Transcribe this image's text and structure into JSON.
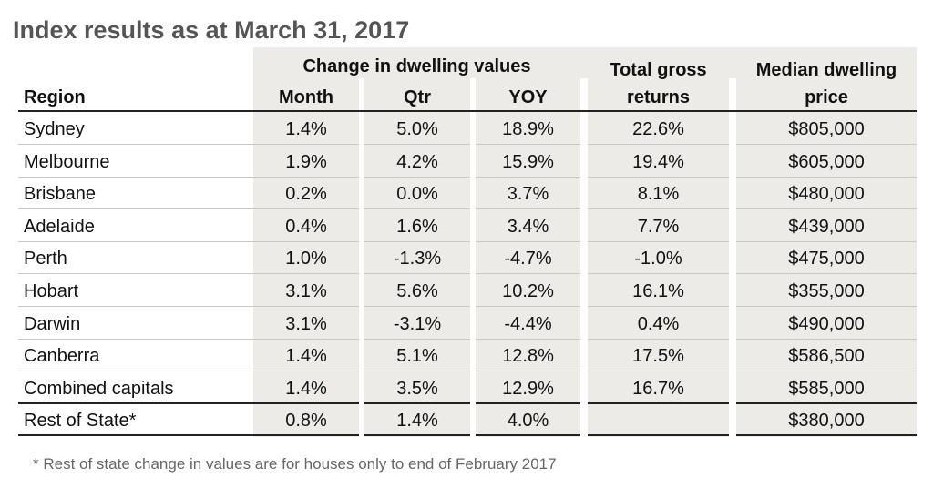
{
  "title": "Index results as at March 31, 2017",
  "group_header": "Change in dwelling values",
  "headers": {
    "region": "Region",
    "month": "Month",
    "qtr": "Qtr",
    "yoy": "YOY",
    "total_line1": "Total gross",
    "total_line2": "returns",
    "median_line1": "Median dwelling",
    "median_line2": "price"
  },
  "rows": [
    {
      "region": "Sydney",
      "month": "1.4%",
      "qtr": "5.0%",
      "yoy": "18.9%",
      "total": "22.6%",
      "median": "$805,000"
    },
    {
      "region": "Melbourne",
      "month": "1.9%",
      "qtr": "4.2%",
      "yoy": "15.9%",
      "total": "19.4%",
      "median": "$605,000"
    },
    {
      "region": "Brisbane",
      "month": "0.2%",
      "qtr": "0.0%",
      "yoy": "3.7%",
      "total": "8.1%",
      "median": "$480,000"
    },
    {
      "region": "Adelaide",
      "month": "0.4%",
      "qtr": "1.6%",
      "yoy": "3.4%",
      "total": "7.7%",
      "median": "$439,000"
    },
    {
      "region": "Perth",
      "month": "1.0%",
      "qtr": "-1.3%",
      "yoy": "-4.7%",
      "total": "-1.0%",
      "median": "$475,000"
    },
    {
      "region": "Hobart",
      "month": "3.1%",
      "qtr": "5.6%",
      "yoy": "10.2%",
      "total": "16.1%",
      "median": "$355,000"
    },
    {
      "region": "Darwin",
      "month": "3.1%",
      "qtr": "-3.1%",
      "yoy": "-4.4%",
      "total": "0.4%",
      "median": "$490,000"
    },
    {
      "region": "Canberra",
      "month": "1.4%",
      "qtr": "5.1%",
      "yoy": "12.8%",
      "total": "17.5%",
      "median": "$586,500"
    },
    {
      "region": "Combined capitals",
      "month": "1.4%",
      "qtr": "3.5%",
      "yoy": "12.9%",
      "total": "16.7%",
      "median": "$585,000"
    },
    {
      "region": "Rest of State*",
      "month": "0.8%",
      "qtr": "1.4%",
      "yoy": "4.0%",
      "total": "",
      "median": "$380,000"
    }
  ],
  "footnote": "* Rest of state change in values are for houses only to end of February 2017"
}
